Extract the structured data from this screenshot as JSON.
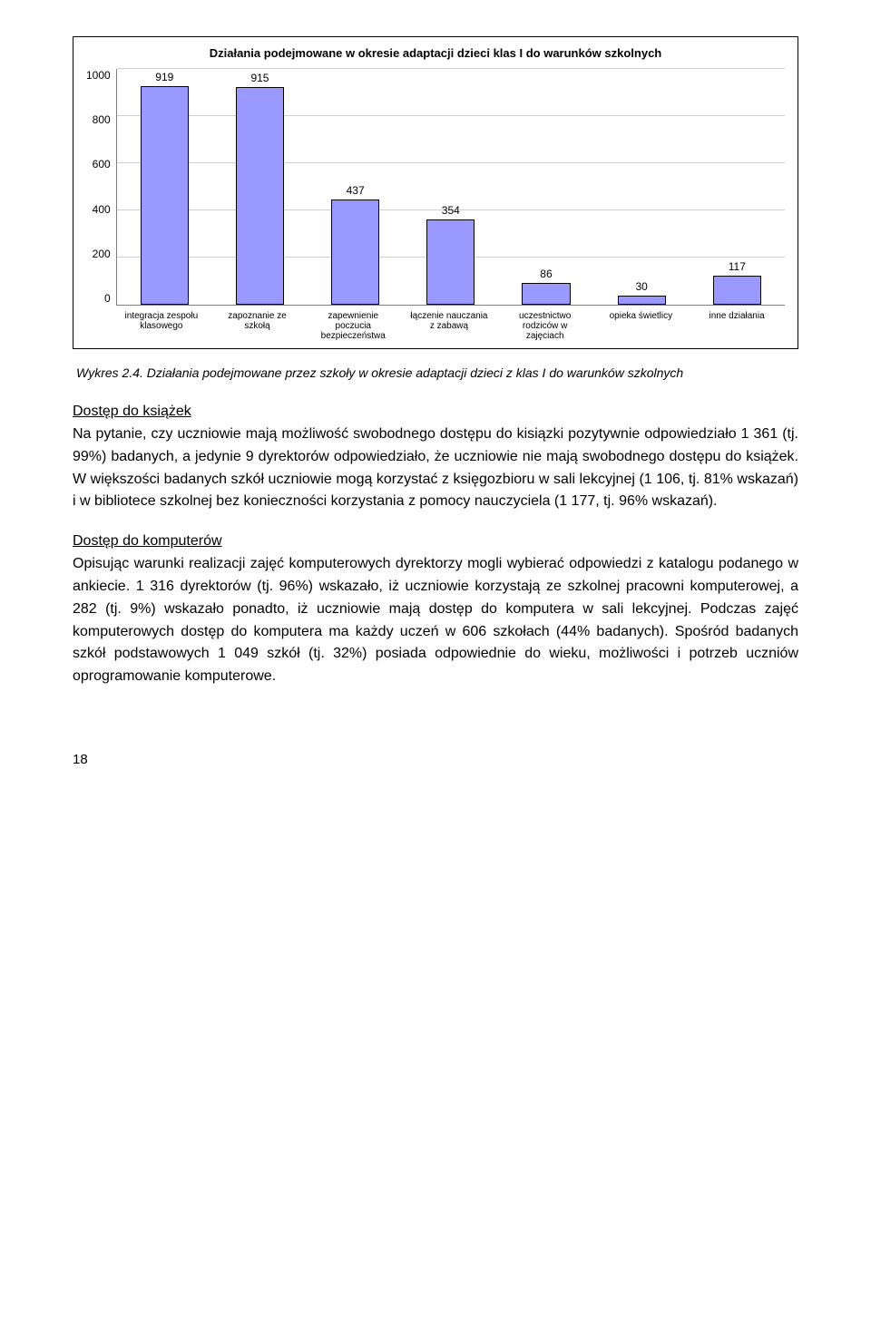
{
  "chart": {
    "title": "Działania podejmowane w okresie adaptacji dzieci klas I do warunków szkolnych",
    "type": "bar",
    "ylim": [
      0,
      1000
    ],
    "ytick_step": 200,
    "yticks": [
      "1000",
      "800",
      "600",
      "400",
      "200",
      "0"
    ],
    "bar_color": "#9999ff",
    "bar_border": "#000000",
    "grid_color": "#d0d0d0",
    "axis_color": "#808080",
    "background_color": "#ffffff",
    "bars": [
      {
        "label": "integracja zespołu klasowego",
        "value": 919
      },
      {
        "label": "zapoznanie ze szkołą",
        "value": 915
      },
      {
        "label": "zapewnienie poczucia bezpieczeństwa",
        "value": 437
      },
      {
        "label": "łączenie nauczania z zabawą",
        "value": 354
      },
      {
        "label": "uczestnictwo rodziców w zajęciach",
        "value": 86
      },
      {
        "label": "opieka świetlicy",
        "value": 30
      },
      {
        "label": "inne działania",
        "value": 117
      }
    ]
  },
  "caption": "Wykres 2.4. Działania podejmowane przez szkoły w okresie adaptacji dzieci z klas I do warunków szkolnych",
  "section1": {
    "title": "Dostęp do książek",
    "body": "Na pytanie, czy uczniowie mają możliwość swobodnego dostępu do kisiązki pozytywnie odpowiedziało 1 361 (tj. 99%) badanych, a jedynie 9 dyrektorów odpowiedziało, że uczniowie nie mają swobodnego dostępu do książek. W większości badanych szkół uczniowie mogą korzystać z księgozbioru w sali lekcyjnej (1 106, tj. 81% wskazań) i w bibliotece szkolnej bez konieczności korzystania z pomocy nauczyciela (1 177, tj. 96% wskazań)."
  },
  "section2": {
    "title": "Dostęp do komputerów",
    "body": "Opisując warunki realizacji zajęć komputerowych dyrektorzy mogli wybierać odpowiedzi z katalogu podanego w ankiecie. 1 316 dyrektorów (tj. 96%) wskazało, iż uczniowie korzystają ze szkolnej pracowni komputerowej, a 282 (tj. 9%) wskazało ponadto, iż uczniowie mają dostęp do komputera w sali lekcyjnej. Podczas zajęć komputerowych dostęp do komputera ma każdy uczeń w 606 szkołach (44% badanych). Spośród badanych szkół podstawowych 1 049 szkół (tj. 32%) posiada odpowiednie do wieku, możliwości i potrzeb uczniów oprogramowanie komputerowe."
  },
  "page_number": "18"
}
